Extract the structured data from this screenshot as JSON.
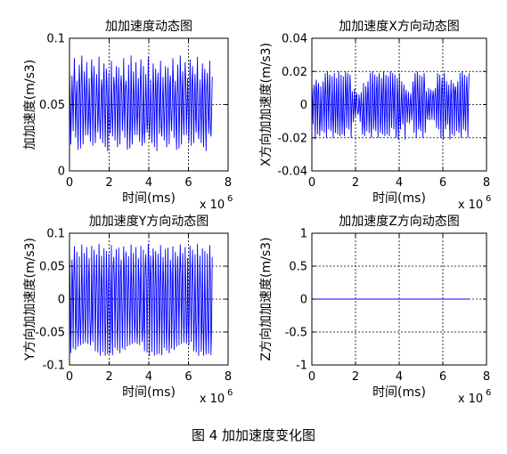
{
  "figure_caption": "图 4  加加速度变化图",
  "colors": {
    "line": "#0000ff",
    "axes": "#000000",
    "background": "#ffffff"
  },
  "chart_data": [
    {
      "type": "line",
      "title": "加加速度动态图",
      "xlabel": "时间(ms)",
      "ylabel": "加加速度(m/s3)",
      "x_multiplier": "x 10",
      "x_multiplier_exp": "6",
      "xlim": [
        0,
        8000000
      ],
      "ylim": [
        0,
        0.1
      ],
      "xticks": [
        0,
        2,
        4,
        6,
        8
      ],
      "yticks": [
        0,
        0.05,
        0.1
      ],
      "ytick_labels": [
        "0",
        "0.05",
        "0.1"
      ],
      "grid": true,
      "series": [
        {
          "x_range": [
            0,
            7200000
          ],
          "oscillation_count": 58,
          "center": 0.05,
          "amplitude_range": [
            0.022,
            0.036
          ],
          "peak_values": [
            0.078,
            0.072,
            0.085,
            0.068,
            0.08,
            0.087,
            0.075,
            0.082,
            0.07,
            0.084,
            0.079,
            0.073,
            0.086,
            0.069,
            0.081,
            0.077,
            0.074,
            0.083,
            0.071,
            0.079
          ],
          "trough_values": [
            0.02,
            0.027,
            0.018,
            0.03,
            0.022,
            0.015,
            0.025,
            0.019,
            0.028,
            0.016,
            0.021,
            0.026,
            0.017,
            0.029,
            0.023,
            0.02,
            0.024,
            0.018,
            0.027,
            0.021
          ]
        }
      ]
    },
    {
      "type": "line",
      "title": "加加速度X方向动态图",
      "xlabel": "时间(ms)",
      "ylabel": "X方向加加速度(m/s3)",
      "x_multiplier": "x 10",
      "x_multiplier_exp": "6",
      "xlim": [
        0,
        8000000
      ],
      "ylim": [
        -0.04,
        0.04
      ],
      "xticks": [
        0,
        2,
        4,
        6,
        8
      ],
      "yticks": [
        -0.04,
        -0.02,
        0,
        0.02,
        0.04
      ],
      "ytick_labels": [
        "-0.04",
        "-0.02",
        "0",
        "0.02",
        "0.04"
      ],
      "grid": true,
      "series": [
        {
          "x_range": [
            0,
            7200000
          ],
          "center": 0,
          "peak_values": [
            0.014,
            0.012,
            0.015,
            0.013,
            0.011,
            0.014,
            0.019,
            0.02,
            0.018,
            0.017,
            0.019,
            0.016,
            0.02,
            0.018,
            0.017,
            0.02,
            0.019,
            0.018,
            0.016,
            0.019
          ],
          "trough_values": [
            -0.012,
            -0.015,
            -0.019,
            -0.021,
            -0.016,
            -0.014,
            -0.018,
            -0.02,
            -0.015,
            -0.019,
            -0.017,
            -0.02,
            -0.016,
            -0.018,
            -0.021,
            -0.017,
            -0.019,
            -0.015,
            -0.02,
            -0.018
          ]
        }
      ]
    },
    {
      "type": "line",
      "title": "加加速度Y方向动态图",
      "xlabel": "时间(ms)",
      "ylabel": "Y方向加加速度(m/s3)",
      "x_multiplier": "x 10",
      "x_multiplier_exp": "6",
      "xlim": [
        0,
        8000000
      ],
      "ylim": [
        -0.1,
        0.1
      ],
      "xticks": [
        0,
        2,
        4,
        6,
        8
      ],
      "yticks": [
        -0.1,
        -0.05,
        0,
        0.05,
        0.1
      ],
      "ytick_labels": [
        "-0.1",
        "-0.05",
        "0",
        "0.05",
        "0.1"
      ],
      "grid": true,
      "series": [
        {
          "x_range": [
            0,
            7200000
          ],
          "oscillation_count": 58,
          "center": 0,
          "peak_values": [
            0.078,
            0.06,
            0.08,
            0.072,
            0.065,
            0.083,
            0.07,
            0.079,
            0.062,
            0.081,
            0.075,
            0.068,
            0.084,
            0.066,
            0.077,
            0.073,
            0.069,
            0.082,
            0.064,
            0.076
          ],
          "trough_values": [
            -0.082,
            -0.068,
            -0.086,
            -0.075,
            -0.07,
            -0.084,
            -0.077,
            -0.065,
            -0.083,
            -0.072,
            -0.079,
            -0.085,
            -0.07,
            -0.081,
            -0.074,
            -0.068,
            -0.086,
            -0.078,
            -0.066,
            -0.08
          ]
        }
      ]
    },
    {
      "type": "line",
      "title": "加加速度Z方向动态图",
      "xlabel": "时间(ms)",
      "ylabel": "Z方向加加速度(m/s3)",
      "x_multiplier": "x 10",
      "x_multiplier_exp": "6",
      "xlim": [
        0,
        8000000
      ],
      "ylim": [
        -1,
        1
      ],
      "xticks": [
        0,
        2,
        4,
        6,
        8
      ],
      "yticks": [
        -1,
        -0.5,
        0,
        0.5,
        1
      ],
      "ytick_labels": [
        "-1",
        "-0.5",
        "0",
        "0.5",
        "1"
      ],
      "grid": true,
      "series": [
        {
          "x": [
            0,
            7200000
          ],
          "y": [
            0,
            0
          ]
        }
      ]
    }
  ]
}
